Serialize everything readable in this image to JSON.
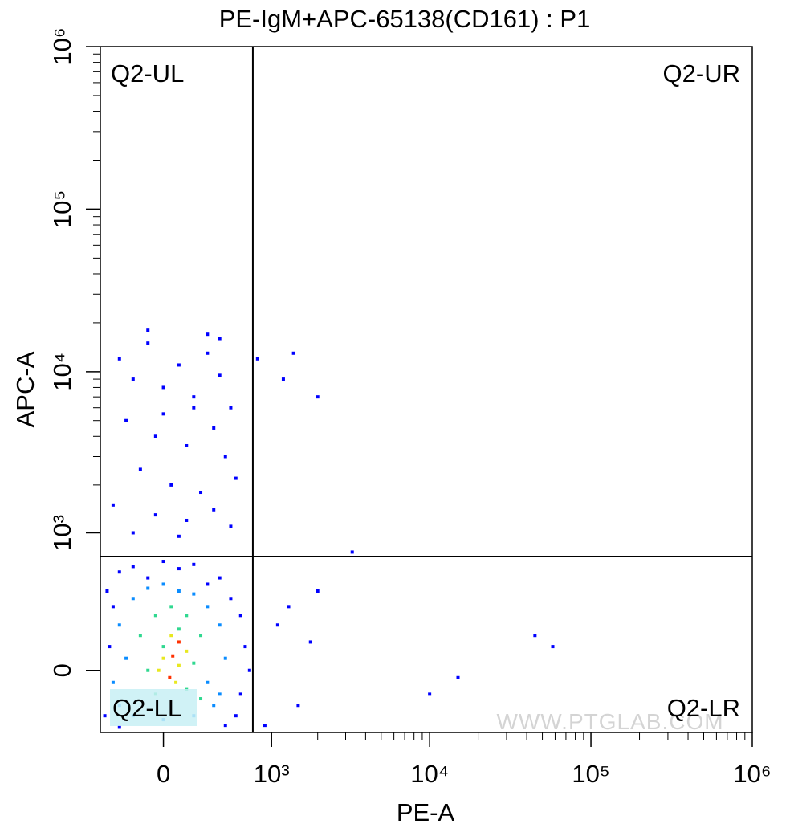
{
  "chart_data": {
    "type": "scatter",
    "title": "PE-IgM+APC-65138(CD161) : P1",
    "x_label": "PE-A",
    "y_label": "APC-A",
    "scale": "biexponential",
    "xlim": [
      -460,
      1000000
    ],
    "ylim": [
      -290,
      1000000
    ],
    "xticks": [
      0,
      {
        "value": 1000,
        "label": "10³"
      },
      {
        "value": 10000,
        "label": "10⁴"
      },
      {
        "value": 100000,
        "label": "10⁵"
      },
      {
        "value": 1000000,
        "label": "10⁶"
      }
    ],
    "yticks": [
      0,
      {
        "value": 1000,
        "label": "10³"
      },
      {
        "value": 10000,
        "label": "10⁴"
      },
      {
        "value": 100000,
        "label": "10⁵"
      },
      {
        "value": 1000000,
        "label": "10⁶"
      }
    ],
    "x_minor_ticks": [
      2000,
      3000,
      4000,
      5000,
      6000,
      7000,
      8000,
      9000,
      20000,
      30000,
      40000,
      50000,
      60000,
      70000,
      80000,
      90000,
      200000,
      300000,
      400000,
      500000,
      600000,
      700000,
      800000,
      900000
    ],
    "y_minor_ticks": [
      2000,
      3000,
      4000,
      5000,
      6000,
      7000,
      8000,
      9000,
      20000,
      30000,
      40000,
      50000,
      60000,
      70000,
      80000,
      90000,
      200000,
      300000,
      400000,
      500000,
      600000,
      700000,
      800000,
      900000
    ],
    "gates": {
      "x": 740,
      "y": 700
    },
    "quadrants": {
      "UL": "Q2-UL",
      "UR": "Q2-UR",
      "LL": "Q2-LL",
      "LR": "Q2-LR"
    },
    "watermark": "WWW.PTGLAB.COM",
    "series": [
      {
        "color": "#0000ff",
        "x": [
          -300,
          -200,
          -100,
          0,
          100,
          200,
          300,
          400,
          500,
          -250,
          -50,
          150,
          350,
          450,
          -150,
          50,
          250,
          550,
          -350,
          -50,
          150,
          350,
          500,
          -200,
          100,
          300,
          -100,
          200,
          0,
          400,
          1200,
          1400,
          2000,
          800,
          3300,
          1300,
          2000,
          1800,
          15000,
          10000,
          45000,
          58000,
          1500,
          900,
          1100,
          -400,
          -300,
          -200,
          -100,
          0,
          100,
          200,
          300,
          400,
          500,
          600,
          650,
          600,
          550,
          -420,
          -380,
          -350,
          450,
          -300,
          700
        ],
        "y": [
          12000,
          9000,
          15000,
          8000,
          11000,
          7000,
          13000,
          9500,
          6000,
          5000,
          4000,
          3500,
          4500,
          3000,
          2500,
          2000,
          1800,
          2200,
          1500,
          1300,
          1200,
          1400,
          1100,
          1000,
          950,
          17000,
          18000,
          6000,
          5500,
          16000,
          9000,
          13000,
          7000,
          12000,
          750,
          300,
          400,
          120,
          -30,
          -100,
          150,
          100,
          -150,
          -250,
          200,
          400,
          550,
          600,
          500,
          650,
          580,
          620,
          450,
          500,
          350,
          250,
          100,
          -100,
          -200,
          -200,
          100,
          300,
          -250,
          -260,
          0
        ]
      },
      {
        "color": "#0a8cff",
        "x": [
          -300,
          -200,
          -100,
          0,
          100,
          200,
          300,
          400,
          450,
          400,
          -350,
          -300,
          -200,
          0,
          200,
          350,
          -250,
          300
        ],
        "y": [
          200,
          350,
          420,
          450,
          400,
          380,
          300,
          200,
          50,
          -100,
          -50,
          -150,
          -200,
          -220,
          -200,
          -150,
          50,
          -50
        ]
      },
      {
        "color": "#30d890",
        "x": [
          -150,
          -50,
          50,
          150,
          250,
          -100,
          0,
          100,
          200,
          -50,
          150,
          250
        ],
        "y": [
          150,
          250,
          300,
          250,
          150,
          0,
          100,
          180,
          30,
          -100,
          -80,
          -120
        ]
      },
      {
        "color": "#e8e820",
        "x": [
          0,
          50,
          100,
          -30,
          150,
          80
        ],
        "y": [
          50,
          150,
          20,
          0,
          80,
          -50
        ]
      },
      {
        "color": "#ff3000",
        "x": [
          60,
          100,
          40
        ],
        "y": [
          60,
          120,
          -30
        ]
      }
    ]
  }
}
